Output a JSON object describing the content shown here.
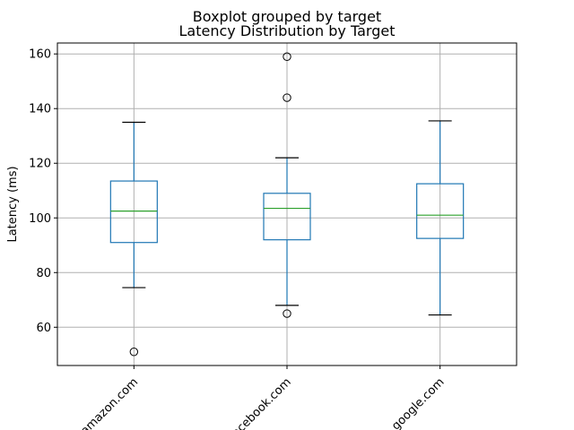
{
  "chart_data": {
    "type": "boxplot",
    "suptitle": "Boxplot grouped by target",
    "title": "Latency Distribution by Target",
    "xlabel": "",
    "ylabel": "Latency (ms)",
    "ylim": [
      46,
      164
    ],
    "yticks": [
      60,
      80,
      100,
      120,
      140,
      160
    ],
    "grid": true,
    "categories": [
      "amazon.com",
      "facebook.com",
      "google.com"
    ],
    "boxes": [
      {
        "category": "amazon.com",
        "whisker_low": 74.5,
        "q1": 91,
        "median": 102.5,
        "q3": 113.5,
        "whisker_high": 135,
        "outliers": [
          51
        ]
      },
      {
        "category": "facebook.com",
        "whisker_low": 68,
        "q1": 92,
        "median": 103.5,
        "q3": 109,
        "whisker_high": 122,
        "outliers": [
          65,
          144,
          159
        ]
      },
      {
        "category": "google.com",
        "whisker_low": 64.5,
        "q1": 92.5,
        "median": 101,
        "q3": 112.5,
        "whisker_high": 135.5,
        "outliers": []
      }
    ],
    "colors": {
      "box": "#1f77b4",
      "median": "#2ca02c",
      "whisker_cap": "#000000",
      "grid": "#b0b0b0",
      "outlier": "#000000"
    }
  }
}
